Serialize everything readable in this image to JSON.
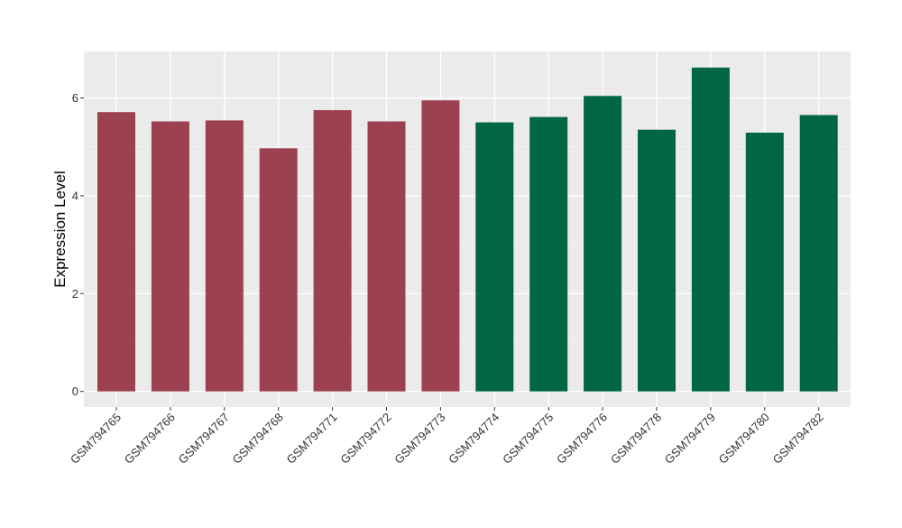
{
  "chart_data": {
    "type": "bar",
    "title": "",
    "xlabel": "",
    "ylabel": "Expression Level",
    "ylim": [
      -0.32,
      6.95
    ],
    "yticks": [
      0,
      2,
      4,
      6
    ],
    "grid": true,
    "legend": "none",
    "colors": {
      "panel_background": "#ebebeb",
      "grid_major": "#ffffff",
      "grid_minor": "#f5f5f5",
      "tick": "#333333",
      "group_a": "#9b414f",
      "group_b": "#006644"
    },
    "categories": [
      "GSM794765",
      "GSM794766",
      "GSM794767",
      "GSM794768",
      "GSM794771",
      "GSM794772",
      "GSM794773",
      "GSM794774",
      "GSM794775",
      "GSM794776",
      "GSM794778",
      "GSM794779",
      "GSM794780",
      "GSM794782"
    ],
    "values": [
      5.71,
      5.52,
      5.54,
      4.97,
      5.75,
      5.52,
      5.95,
      5.5,
      5.61,
      6.04,
      5.35,
      6.62,
      5.29,
      5.65
    ],
    "bar_groups": [
      "a",
      "a",
      "a",
      "a",
      "a",
      "a",
      "a",
      "b",
      "b",
      "b",
      "b",
      "b",
      "b",
      "b"
    ]
  }
}
